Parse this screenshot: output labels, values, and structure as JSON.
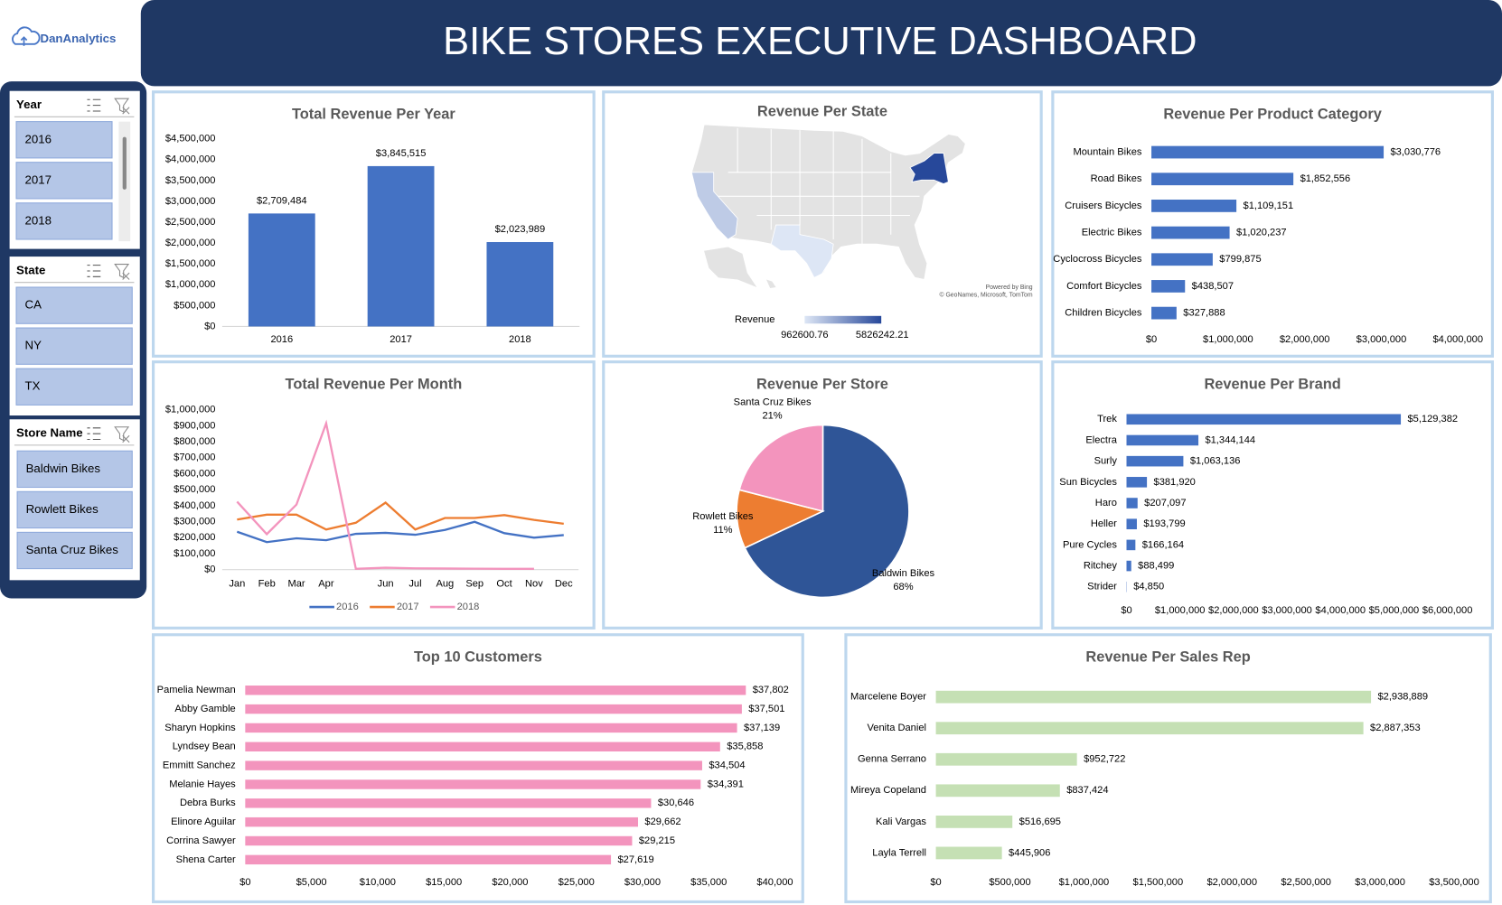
{
  "header": {
    "logo": "DanAnalytics",
    "title": "BIKE STORES EXECUTIVE DASHBOARD"
  },
  "slicers": [
    {
      "title": "Year",
      "items": [
        "2016",
        "2017",
        "2018"
      ]
    },
    {
      "title": "State",
      "items": [
        "CA",
        "NY",
        "TX"
      ]
    },
    {
      "title": "Store Name",
      "items": [
        "Baldwin Bikes",
        "Rowlett Bikes",
        "Santa Cruz Bikes"
      ]
    }
  ],
  "chart_data": [
    {
      "type": "bar",
      "title": "Total Revenue Per Year",
      "categories": [
        "2016",
        "2017",
        "2018"
      ],
      "values": [
        2709484,
        3845515,
        2023989
      ],
      "value_labels": [
        "$2,709,484",
        "$3,845,515",
        "$2,023,989"
      ],
      "color": "#4472c4",
      "ylim": [
        0,
        4500000
      ],
      "yticks": [
        {
          "value": 0,
          "label": "$0"
        },
        {
          "value": 500000,
          "label": "$500,000"
        },
        {
          "value": 1000000,
          "label": "$1,000,000"
        },
        {
          "value": 1500000,
          "label": "$1,500,000"
        },
        {
          "value": 2000000,
          "label": "$2,000,000"
        },
        {
          "value": 2500000,
          "label": "$2,500,000"
        },
        {
          "value": 3000000,
          "label": "$3,000,000"
        },
        {
          "value": 3500000,
          "label": "$3,500,000"
        },
        {
          "value": 4000000,
          "label": "$4,000,000"
        },
        {
          "value": 4500000,
          "label": "$4,500,000"
        }
      ],
      "grid": false
    },
    {
      "type": "map",
      "title": "Revenue Per State",
      "legend_title": "Revenue",
      "values": [
        1790145,
        5826242.21,
        962600.76
      ],
      "vlim": [
        962600.76,
        5826242.21
      ],
      "colors": [
        "#dde6f5",
        "#27489a"
      ],
      "attribution": [
        "Powered by Bing",
        "© GeoNames, Microsoft, TomTom"
      ]
    },
    {
      "type": "hbar",
      "title": "Revenue Per Product Category",
      "categories": [
        "Mountain Bikes",
        "Road Bikes",
        "Cruisers Bicycles",
        "Electric Bikes",
        "Cyclocross Bicycles",
        "Comfort Bicycles",
        "Children Bicycles"
      ],
      "values": [
        3030776,
        1852556,
        1109151,
        1020237,
        799875,
        438507,
        327888
      ],
      "value_labels": [
        "$3,030,776",
        "$1,852,556",
        "$1,109,151",
        "$1,020,237",
        "$799,875",
        "$438,507",
        "$327,888"
      ],
      "color": "#4472c4",
      "xlim": [
        0,
        4000000
      ],
      "xticks": [
        {
          "value": 0,
          "label": "$0"
        },
        {
          "value": 1000000,
          "label": "$1,000,000"
        },
        {
          "value": 2000000,
          "label": "$2,000,000"
        },
        {
          "value": 3000000,
          "label": "$3,000,000"
        },
        {
          "value": 4000000,
          "label": "$4,000,000"
        }
      ],
      "grid": false
    },
    {
      "type": "line",
      "title": "Total Revenue Per Month",
      "categories": [
        "Jan",
        "Feb",
        "Mar",
        "Apr",
        null,
        "Jun",
        "Jul",
        "Aug",
        "Sep",
        "Oct",
        "Nov",
        "Dec"
      ],
      "series": [
        {
          "name": "2016",
          "color": "#4472c4",
          "values": [
            237000,
            172000,
            196000,
            184000,
            224000,
            230000,
            218000,
            248000,
            299000,
            228000,
            200000,
            216000
          ]
        },
        {
          "name": "2017",
          "color": "#ed7d31",
          "values": [
            313000,
            344000,
            344000,
            251000,
            293000,
            419000,
            251000,
            323000,
            323000,
            341000,
            311000,
            287000
          ]
        },
        {
          "name": "2018",
          "color": "#f394bd",
          "values": [
            425000,
            222000,
            407000,
            915000,
            5000,
            12000,
            8000,
            7000,
            6000,
            5000,
            5000,
            null
          ]
        }
      ],
      "ylim": [
        0,
        1000000
      ],
      "yticks": [
        {
          "value": 0,
          "label": "$0"
        },
        {
          "value": 100000,
          "label": "$100,000"
        },
        {
          "value": 200000,
          "label": "$200,000"
        },
        {
          "value": 300000,
          "label": "$300,000"
        },
        {
          "value": 400000,
          "label": "$400,000"
        },
        {
          "value": 500000,
          "label": "$500,000"
        },
        {
          "value": 600000,
          "label": "$600,000"
        },
        {
          "value": 700000,
          "label": "$700,000"
        },
        {
          "value": 800000,
          "label": "$800,000"
        },
        {
          "value": 900000,
          "label": "$900,000"
        },
        {
          "value": 1000000,
          "label": "$1,000,000"
        }
      ],
      "grid": false,
      "legend": "bottom"
    },
    {
      "type": "pie",
      "title": "Revenue Per Store",
      "categories": [
        "Baldwin Bikes",
        "Rowlett Bikes",
        "Santa Cruz Bikes"
      ],
      "values": [
        68,
        11,
        21
      ],
      "value_labels": [
        "68%",
        "11%",
        "21%"
      ],
      "colors": [
        "#2f5597",
        "#ed7d31",
        "#f394bd"
      ]
    },
    {
      "type": "hbar",
      "title": "Revenue Per Brand",
      "categories": [
        "Trek",
        "Electra",
        "Surly",
        "Sun Bicycles",
        "Haro",
        "Heller",
        "Pure Cycles",
        "Ritchey",
        "Strider"
      ],
      "values": [
        5129382,
        1344144,
        1063136,
        381920,
        207097,
        193799,
        166164,
        88499,
        4850
      ],
      "value_labels": [
        "$5,129,382",
        "$1,344,144",
        "$1,063,136",
        "$381,920",
        "$207,097",
        "$193,799",
        "$166,164",
        "$88,499",
        "$4,850"
      ],
      "color": "#4472c4",
      "xlim": [
        0,
        6000000
      ],
      "xticks": [
        {
          "value": 0,
          "label": "$0"
        },
        {
          "value": 1000000,
          "label": "$1,000,000"
        },
        {
          "value": 2000000,
          "label": "$2,000,000"
        },
        {
          "value": 3000000,
          "label": "$3,000,000"
        },
        {
          "value": 4000000,
          "label": "$4,000,000"
        },
        {
          "value": 5000000,
          "label": "$5,000,000"
        },
        {
          "value": 6000000,
          "label": "$6,000,000"
        }
      ],
      "grid": false
    },
    {
      "type": "hbar",
      "title": "Top 10 Customers",
      "categories": [
        "Pamelia Newman",
        "Abby Gamble",
        "Sharyn Hopkins",
        "Lyndsey Bean",
        "Emmitt Sanchez",
        "Melanie Hayes",
        "Debra Burks",
        "Elinore Aguilar",
        "Corrina Sawyer",
        "Shena Carter"
      ],
      "values": [
        37802,
        37501,
        37139,
        35858,
        34504,
        34391,
        30646,
        29662,
        29215,
        27619
      ],
      "value_labels": [
        "$37,802",
        "$37,501",
        "$37,139",
        "$35,858",
        "$34,504",
        "$34,391",
        "$30,646",
        "$29,662",
        "$29,215",
        "$27,619"
      ],
      "color": "#f394bd",
      "xlim": [
        0,
        40000
      ],
      "xticks": [
        {
          "value": 0,
          "label": "$0"
        },
        {
          "value": 5000,
          "label": "$5,000"
        },
        {
          "value": 10000,
          "label": "$10,000"
        },
        {
          "value": 15000,
          "label": "$15,000"
        },
        {
          "value": 20000,
          "label": "$20,000"
        },
        {
          "value": 25000,
          "label": "$25,000"
        },
        {
          "value": 30000,
          "label": "$30,000"
        },
        {
          "value": 35000,
          "label": "$35,000"
        },
        {
          "value": 40000,
          "label": "$40,000"
        }
      ],
      "grid": false
    },
    {
      "type": "hbar",
      "title": "Revenue Per Sales Rep",
      "categories": [
        "Marcelene Boyer",
        "Venita Daniel",
        "Genna Serrano",
        "Mireya Copeland",
        "Kali Vargas",
        "Layla Terrell"
      ],
      "values": [
        2938889,
        2887353,
        952722,
        837424,
        516695,
        445906
      ],
      "value_labels": [
        "$2,938,889",
        "$2,887,353",
        "$952,722",
        "$837,424",
        "$516,695",
        "$445,906"
      ],
      "color": "#c5e0b4",
      "xlim": [
        0,
        3500000
      ],
      "xticks": [
        {
          "value": 0,
          "label": "$0"
        },
        {
          "value": 500000,
          "label": "$500,000"
        },
        {
          "value": 1000000,
          "label": "$1,000,000"
        },
        {
          "value": 1500000,
          "label": "$1,500,000"
        },
        {
          "value": 2000000,
          "label": "$2,000,000"
        },
        {
          "value": 2500000,
          "label": "$2,500,000"
        },
        {
          "value": 3000000,
          "label": "$3,000,000"
        },
        {
          "value": 3500000,
          "label": "$3,500,000"
        }
      ],
      "grid": false
    }
  ]
}
